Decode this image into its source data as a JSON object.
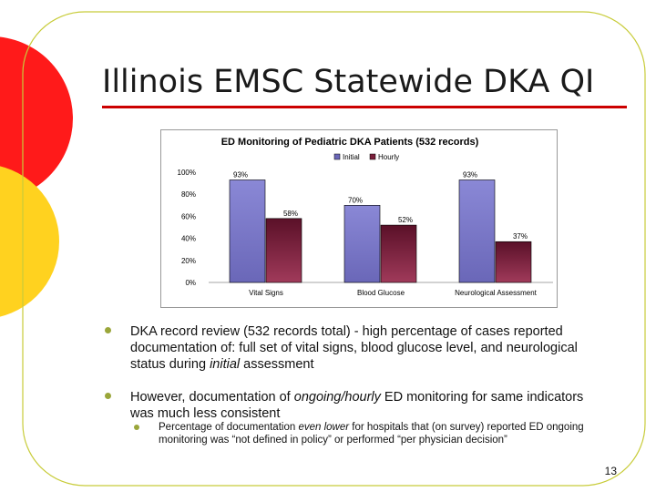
{
  "slide": {
    "title": "Illinois EMSC Statewide DKA QI",
    "page_number": "13"
  },
  "colors": {
    "title_rule": "#cc0000",
    "accent_red": "#ff1a1a",
    "accent_yellow": "#ffd21f",
    "frame_line": "#c8cc3a",
    "bullet": "#9aa63a",
    "series_initial": "#6a67b8",
    "series_hourly": "#7a1f3a"
  },
  "chart_data": {
    "type": "bar",
    "title": "ED Monitoring of Pediatric DKA Patients (532 records)",
    "categories": [
      "Vital Signs",
      "Blood Glucose",
      "Neurological Assessment"
    ],
    "series": [
      {
        "name": "Initial",
        "values": [
          93,
          70,
          93
        ],
        "labels": [
          "93%",
          "70%",
          "93%"
        ]
      },
      {
        "name": "Hourly",
        "values": [
          58,
          52,
          37
        ],
        "labels": [
          "58%",
          "52%",
          "37%"
        ]
      }
    ],
    "yticks": [
      "0%",
      "20%",
      "40%",
      "60%",
      "80%",
      "100%"
    ],
    "ylim": [
      0,
      100
    ],
    "legend_position": "top-center",
    "grid": false
  },
  "bullets": [
    {
      "segments": [
        {
          "text": "DKA record review (532 records total) - high percentage of cases reported documentation of: full set of vital signs, blood glucose level, and neurological status during ",
          "italic": false
        },
        {
          "text": "initial",
          "italic": true
        },
        {
          "text": " assessment",
          "italic": false
        }
      ]
    },
    {
      "segments": [
        {
          "text": "However, documentation of ",
          "italic": false
        },
        {
          "text": "ongoing/hourly",
          "italic": true
        },
        {
          "text": " ED monitoring for same indicators was much less consistent",
          "italic": false
        }
      ],
      "sub": {
        "segments": [
          {
            "text": "Percentage of documentation ",
            "italic": false
          },
          {
            "text": "even lower",
            "italic": true
          },
          {
            "text": " for hospitals that (on survey) reported ED ongoing monitoring was “not defined in policy” or performed “per physician decision”",
            "italic": false
          }
        ]
      }
    }
  ]
}
